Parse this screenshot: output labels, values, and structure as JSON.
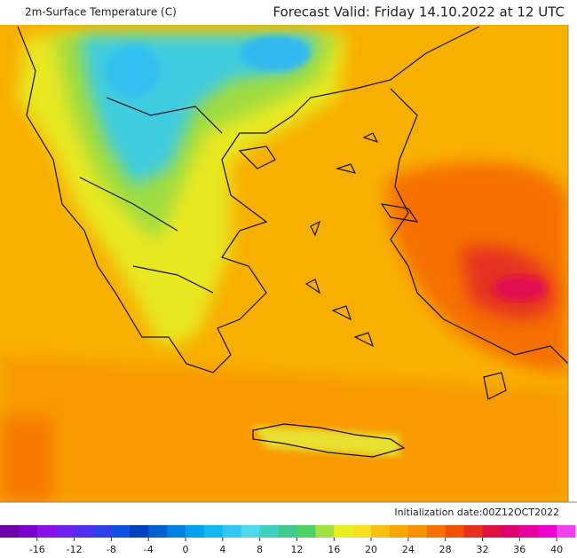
{
  "header": {
    "title": "2m-Surface Temperature (C)",
    "forecast": "Forecast Valid:  Friday 14.10.2022 at 12 UTC"
  },
  "footer": {
    "initialization": "Initialization date:00Z12OCT2022"
  },
  "colorbar": {
    "range": [
      -20,
      42
    ],
    "step": 2,
    "ticks": [
      -16,
      -12,
      -8,
      -4,
      0,
      4,
      8,
      12,
      16,
      20,
      24,
      28,
      32,
      36,
      40
    ],
    "colors": [
      "#6a00a8",
      "#7a00d0",
      "#8a10e8",
      "#7020f0",
      "#5030f0",
      "#3040e8",
      "#1050e0",
      "#0040c0",
      "#0060d0",
      "#0080e0",
      "#00a0f0",
      "#10b8f0",
      "#30c8f0",
      "#50d8e8",
      "#40d0c0",
      "#40c890",
      "#50d060",
      "#a0e040",
      "#e8f020",
      "#f8e020",
      "#f8c010",
      "#f8a800",
      "#f89000",
      "#f87000",
      "#f05000",
      "#e83020",
      "#e01040",
      "#e00070",
      "#e800a0",
      "#f000d0",
      "#f040f0"
    ]
  }
}
